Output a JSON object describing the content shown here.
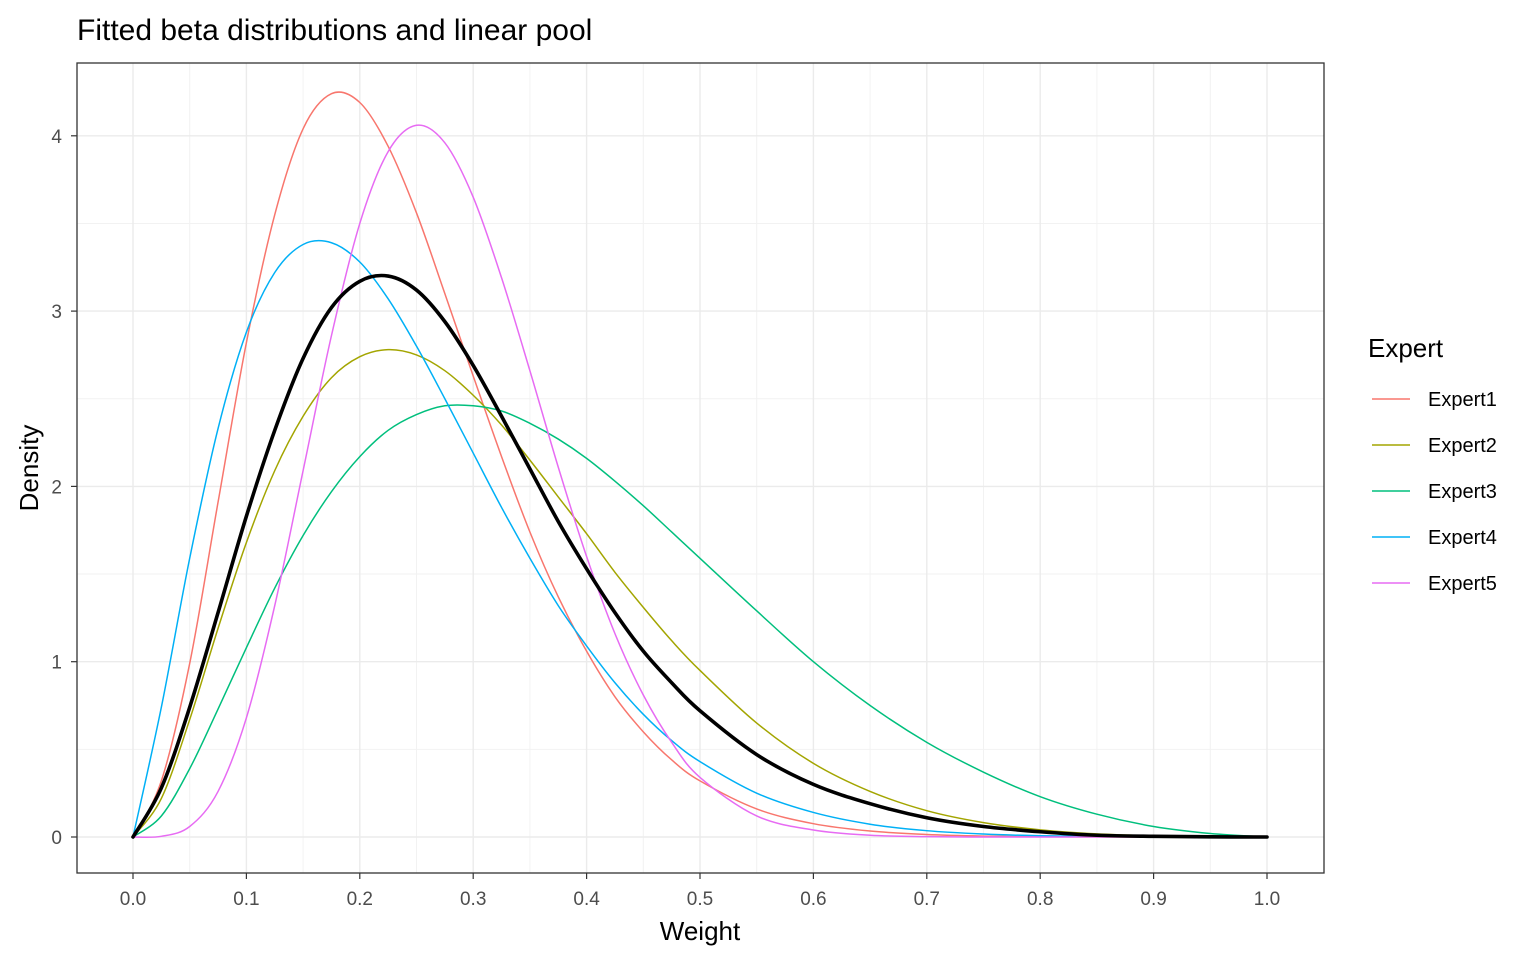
{
  "chart_data": {
    "type": "line",
    "title": "Fitted beta distributions and linear pool",
    "xlabel": "Weight",
    "ylabel": "Density",
    "xlim": [
      0,
      1
    ],
    "ylim": [
      0,
      4.2
    ],
    "x_ticks": [
      "0.0",
      "0.1",
      "0.2",
      "0.3",
      "0.4",
      "0.5",
      "0.6",
      "0.7",
      "0.8",
      "0.9",
      "1.0"
    ],
    "y_ticks": [
      "0",
      "1",
      "2",
      "3",
      "4"
    ],
    "grid": true,
    "legend": {
      "title": "Expert",
      "position": "right"
    },
    "x": [
      0,
      0.025,
      0.05,
      0.075,
      0.1,
      0.125,
      0.15,
      0.175,
      0.2,
      0.225,
      0.25,
      0.275,
      0.3,
      0.325,
      0.35,
      0.375,
      0.4,
      0.425,
      0.45,
      0.475,
      0.5,
      0.55,
      0.6,
      0.65,
      0.7,
      0.75,
      0.8,
      0.85,
      0.9,
      0.95,
      1.0
    ],
    "series": [
      {
        "name": "Expert1",
        "color": "#F8766D",
        "values": [
          0,
          0.32,
          0.99,
          1.91,
          2.82,
          3.55,
          4.04,
          4.24,
          4.19,
          3.94,
          3.56,
          3.1,
          2.63,
          2.17,
          1.74,
          1.37,
          1.06,
          0.8,
          0.6,
          0.44,
          0.32,
          0.16,
          0.076,
          0.034,
          0.014,
          0.005,
          0.0017,
          0.0005,
          0.0001,
          0,
          0
        ]
      },
      {
        "name": "Expert2",
        "color": "#A3A500",
        "values": [
          0,
          0.22,
          0.67,
          1.19,
          1.68,
          2.09,
          2.4,
          2.62,
          2.74,
          2.78,
          2.75,
          2.66,
          2.52,
          2.35,
          2.15,
          1.94,
          1.73,
          1.51,
          1.31,
          1.12,
          0.95,
          0.65,
          0.42,
          0.26,
          0.15,
          0.082,
          0.041,
          0.018,
          0.007,
          0.002,
          0
        ]
      },
      {
        "name": "Expert3",
        "color": "#00BF7D",
        "values": [
          0,
          0.12,
          0.39,
          0.73,
          1.08,
          1.42,
          1.72,
          1.97,
          2.17,
          2.32,
          2.41,
          2.46,
          2.46,
          2.43,
          2.36,
          2.27,
          2.16,
          2.03,
          1.89,
          1.74,
          1.59,
          1.29,
          1.0,
          0.75,
          0.54,
          0.37,
          0.23,
          0.13,
          0.06,
          0.02,
          0
        ]
      },
      {
        "name": "Expert4",
        "color": "#00B0F6",
        "values": [
          0,
          0.74,
          1.59,
          2.33,
          2.88,
          3.22,
          3.38,
          3.39,
          3.28,
          3.07,
          2.8,
          2.5,
          2.19,
          1.88,
          1.59,
          1.32,
          1.09,
          0.88,
          0.7,
          0.55,
          0.43,
          0.25,
          0.14,
          0.073,
          0.036,
          0.017,
          0.007,
          0.003,
          0.001,
          0,
          0
        ]
      },
      {
        "name": "Expert5",
        "color": "#E76BF3",
        "values": [
          0,
          0.004,
          0.06,
          0.26,
          0.68,
          1.32,
          2.09,
          2.86,
          3.5,
          3.91,
          4.06,
          3.96,
          3.65,
          3.19,
          2.66,
          2.11,
          1.6,
          1.16,
          0.81,
          0.54,
          0.34,
          0.12,
          0.04,
          0.01,
          0.002,
          0,
          0,
          0,
          0,
          0,
          0
        ]
      },
      {
        "name": "Linear pool",
        "color": "#000000",
        "linewidth": 3.6,
        "values": [
          0,
          0.28,
          0.74,
          1.28,
          1.83,
          2.32,
          2.73,
          3.02,
          3.17,
          3.2,
          3.12,
          2.94,
          2.69,
          2.4,
          2.1,
          1.8,
          1.53,
          1.28,
          1.06,
          0.88,
          0.72,
          0.47,
          0.3,
          0.19,
          0.11,
          0.06,
          0.03,
          0.01,
          0.004,
          0.001,
          0
        ]
      }
    ]
  }
}
